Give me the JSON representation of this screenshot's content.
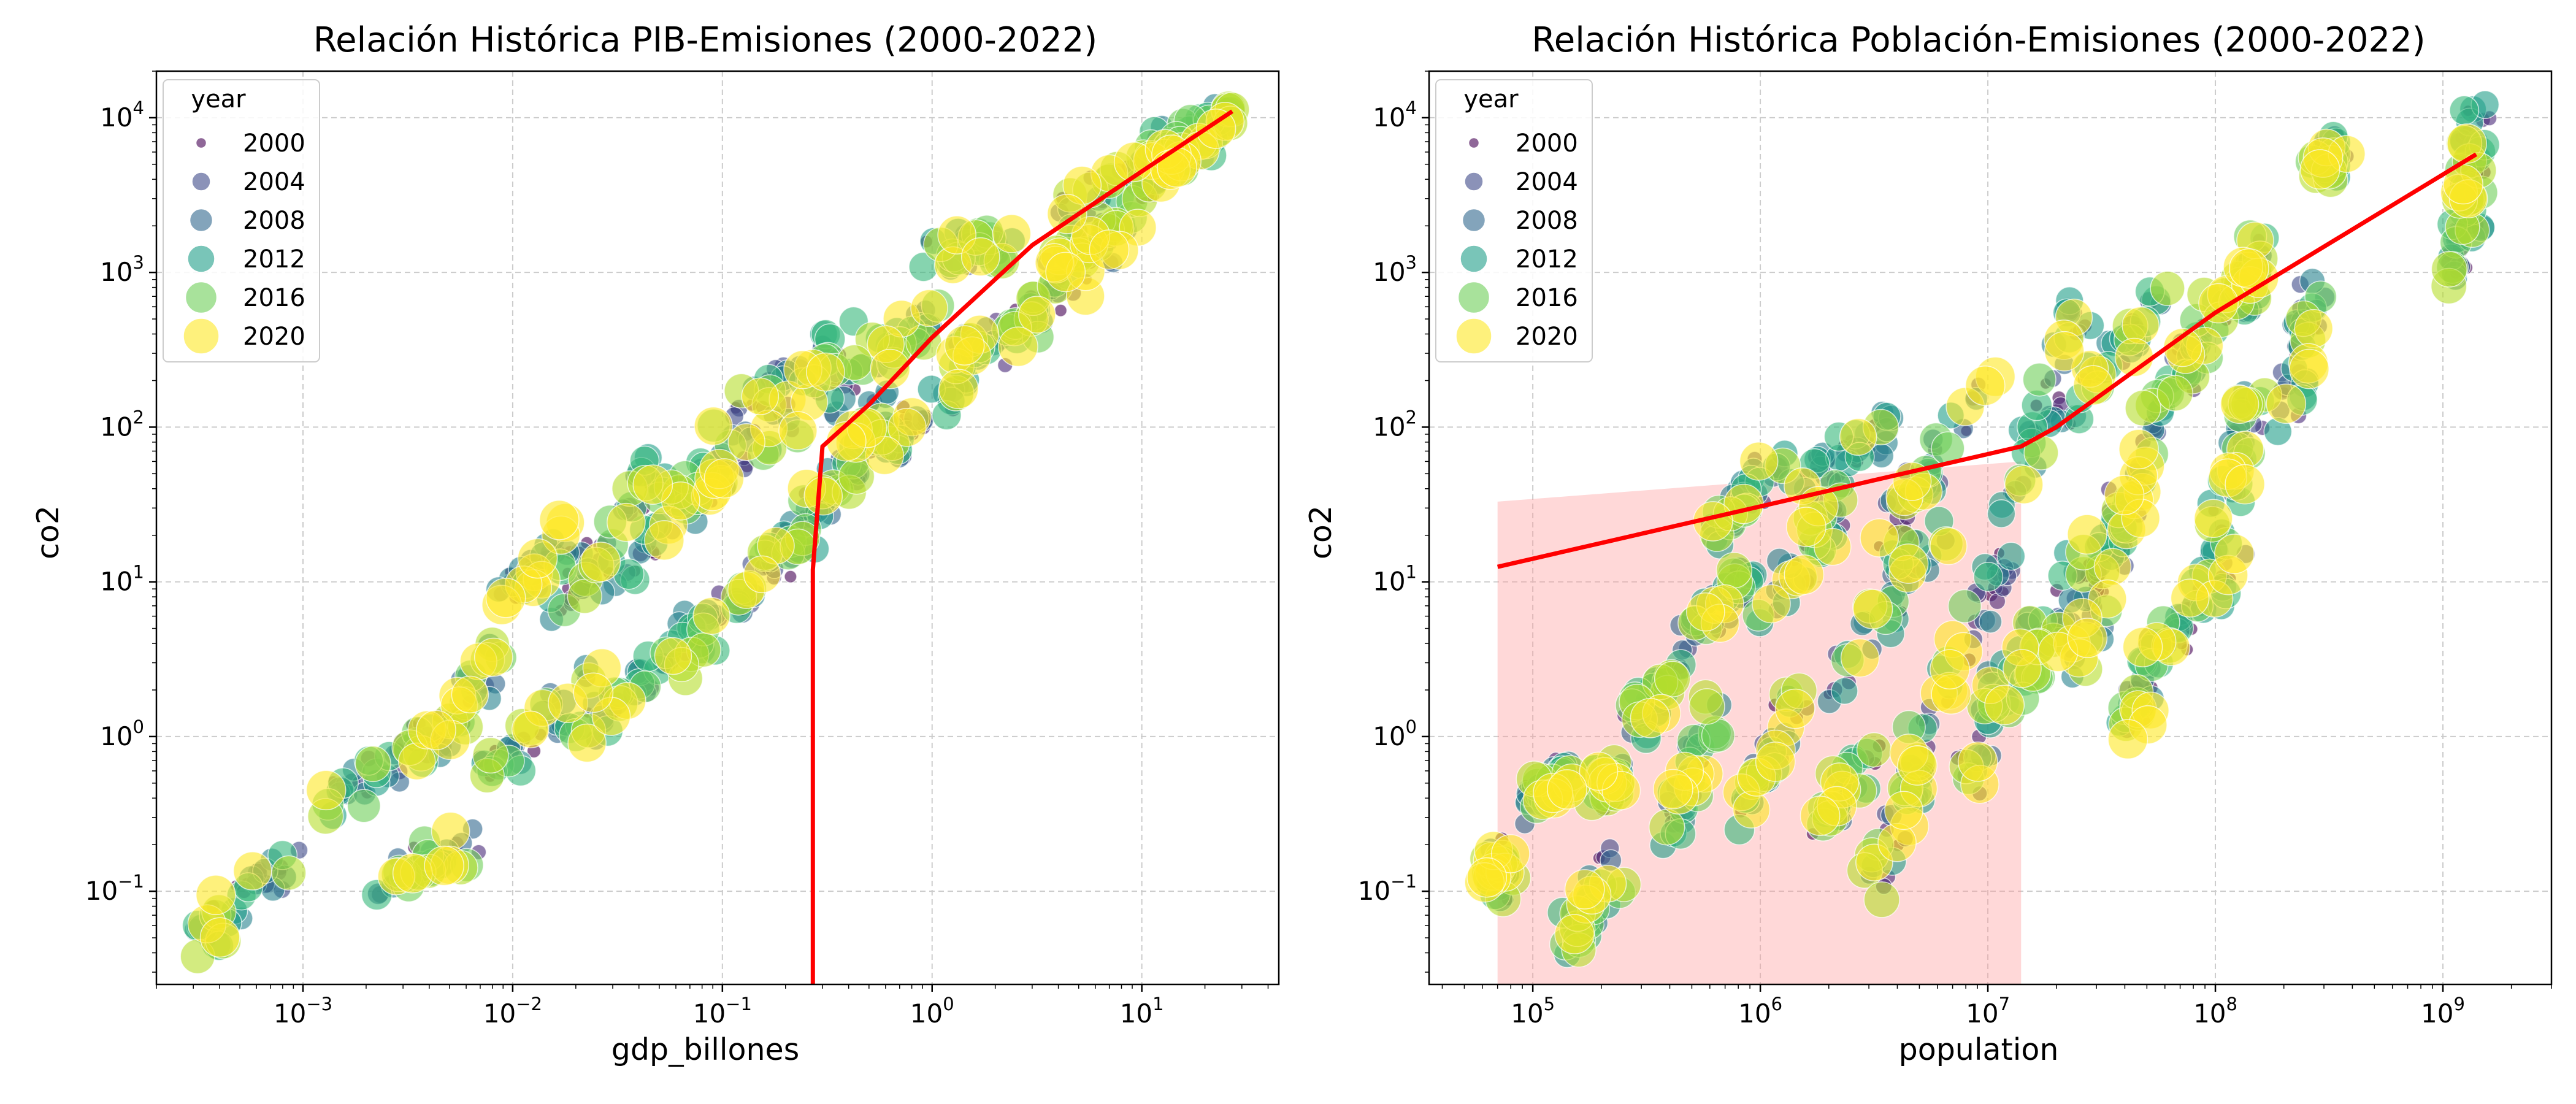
{
  "figure": {
    "background": "#ffffff"
  },
  "palette": {
    "year_colors": [
      "#440154",
      "#482878",
      "#3e4a89",
      "#31688e",
      "#26828e",
      "#1f9e89",
      "#35b779",
      "#6ece58",
      "#b5de2b",
      "#fde725"
    ],
    "trend_color": "#ff0000",
    "ci_color": "#ff9999"
  },
  "chart_data": [
    {
      "type": "scatter",
      "title": "Relación Histórica PIB-Emisiones (2000-2022)",
      "xlabel": "gdp_billones",
      "ylabel": "co2",
      "xscale": "log",
      "yscale": "log",
      "xlim": [
        0.0002,
        45
      ],
      "ylim": [
        0.025,
        20000
      ],
      "xticks": [
        {
          "v": 0.001,
          "m": "10",
          "e": "−3"
        },
        {
          "v": 0.01,
          "m": "10",
          "e": "−2"
        },
        {
          "v": 0.1,
          "m": "10",
          "e": "−1"
        },
        {
          "v": 1,
          "m": "10",
          "e": "0"
        },
        {
          "v": 10,
          "m": "10",
          "e": "1"
        }
      ],
      "yticks": [
        {
          "v": 0.1,
          "m": "10",
          "e": "−1"
        },
        {
          "v": 1,
          "m": "10",
          "e": "0"
        },
        {
          "v": 10,
          "m": "10",
          "e": "1"
        },
        {
          "v": 100,
          "m": "10",
          "e": "2"
        },
        {
          "v": 1000,
          "m": "10",
          "e": "3"
        },
        {
          "v": 10000,
          "m": "10",
          "e": "4"
        }
      ],
      "grid": true,
      "legend": {
        "title": "year",
        "placement": "upper left",
        "entries": [
          "2000",
          "2004",
          "2008",
          "2012",
          "2016",
          "2020"
        ]
      },
      "trend_line": {
        "x": [
          0.27,
          0.27,
          0.3,
          0.5,
          1,
          3,
          10,
          27
        ],
        "y": [
          0.025,
          12,
          75,
          140,
          380,
          1500,
          4500,
          11000
        ]
      },
      "clusters": [
        {
          "x0": 0.0003,
          "y0": 0.048,
          "x1": 0.0009,
          "y1": 0.16
        },
        {
          "x0": 0.0013,
          "y0": 0.35,
          "x1": 0.004,
          "y1": 1.0
        },
        {
          "x0": 0.0025,
          "y0": 0.12,
          "x1": 0.006,
          "y1": 0.2
        },
        {
          "x0": 0.003,
          "y0": 0.6,
          "x1": 0.009,
          "y1": 3.5
        },
        {
          "x0": 0.007,
          "y0": 0.5,
          "x1": 0.025,
          "y1": 2.5
        },
        {
          "x0": 0.009,
          "y0": 8,
          "x1": 0.02,
          "y1": 20
        },
        {
          "x0": 0.015,
          "y0": 5,
          "x1": 0.05,
          "y1": 60
        },
        {
          "x0": 0.02,
          "y0": 1,
          "x1": 0.08,
          "y1": 6
        },
        {
          "x0": 0.03,
          "y0": 10,
          "x1": 0.12,
          "y1": 70
        },
        {
          "x0": 0.05,
          "y0": 30,
          "x1": 0.3,
          "y1": 150
        },
        {
          "x0": 0.06,
          "y0": 3,
          "x1": 0.2,
          "y1": 15
        },
        {
          "x0": 0.1,
          "y0": 100,
          "x1": 0.4,
          "y1": 400
        },
        {
          "x0": 0.15,
          "y0": 10,
          "x1": 0.4,
          "y1": 60
        },
        {
          "x0": 0.25,
          "y0": 20,
          "x1": 0.6,
          "y1": 150
        },
        {
          "x0": 0.3,
          "y0": 150,
          "x1": 1.2,
          "y1": 600
        },
        {
          "x0": 0.5,
          "y0": 60,
          "x1": 1.5,
          "y1": 200
        },
        {
          "x0": 0.8,
          "y0": 1300,
          "x1": 2.5,
          "y1": 1500
        },
        {
          "x0": 1.2,
          "y0": 250,
          "x1": 3.5,
          "y1": 700
        },
        {
          "x0": 2.0,
          "y0": 300,
          "x1": 8,
          "y1": 1800
        },
        {
          "x0": 3.5,
          "y0": 1000,
          "x1": 12,
          "y1": 3500
        },
        {
          "x0": 4,
          "y0": 2400,
          "x1": 20,
          "y1": 9000
        },
        {
          "x0": 12,
          "y0": 5000,
          "x1": 15,
          "y1": 6000
        },
        {
          "x0": 16,
          "y0": 6000,
          "x1": 27,
          "y1": 11000
        }
      ]
    },
    {
      "type": "scatter",
      "title": "Relación Histórica Población-Emisiones (2000-2022)",
      "xlabel": "population",
      "ylabel": "co2",
      "xscale": "log",
      "yscale": "log",
      "xlim": [
        35000,
        3000000000
      ],
      "ylim": [
        0.025,
        20000
      ],
      "xticks": [
        {
          "v": 100000,
          "m": "10",
          "e": "5"
        },
        {
          "v": 1000000,
          "m": "10",
          "e": "6"
        },
        {
          "v": 10000000,
          "m": "10",
          "e": "7"
        },
        {
          "v": 100000000,
          "m": "10",
          "e": "8"
        },
        {
          "v": 1000000000,
          "m": "10",
          "e": "9"
        }
      ],
      "yticks": [
        {
          "v": 0.1,
          "m": "10",
          "e": "−1"
        },
        {
          "v": 1,
          "m": "10",
          "e": "0"
        },
        {
          "v": 10,
          "m": "10",
          "e": "1"
        },
        {
          "v": 100,
          "m": "10",
          "e": "2"
        },
        {
          "v": 1000,
          "m": "10",
          "e": "3"
        },
        {
          "v": 10000,
          "m": "10",
          "e": "4"
        }
      ],
      "grid": true,
      "legend": {
        "title": "year",
        "placement": "upper left",
        "entries": [
          "2000",
          "2004",
          "2008",
          "2012",
          "2016",
          "2020"
        ]
      },
      "trend_line": {
        "x": [
          70000,
          14000000,
          20000000,
          100000000,
          1400000000
        ],
        "y": [
          12.5,
          75,
          100,
          550,
          5800
        ]
      },
      "ci_band": {
        "x": [
          70000,
          14000000,
          14000000,
          70000
        ],
        "y": [
          33,
          60,
          0.025,
          0.025
        ]
      },
      "clusters": [
        {
          "x0": 70000,
          "y0": 0.11,
          "x1": 75000,
          "y1": 0.17
        },
        {
          "x0": 100000,
          "y0": 0.35,
          "x1": 140000,
          "y1": 0.6
        },
        {
          "x0": 140000,
          "y0": 0.05,
          "x1": 230000,
          "y1": 0.15
        },
        {
          "x0": 200000,
          "y0": 0.45,
          "x1": 220000,
          "y1": 0.55
        },
        {
          "x0": 280000,
          "y0": 1.2,
          "x1": 420000,
          "y1": 3.5
        },
        {
          "x0": 400000,
          "y0": 0.2,
          "x1": 600000,
          "y1": 1.5
        },
        {
          "x0": 500000,
          "y0": 4,
          "x1": 900000,
          "y1": 12
        },
        {
          "x0": 600000,
          "y0": 20,
          "x1": 1200000,
          "y1": 60
        },
        {
          "x0": 800000,
          "y0": 0.3,
          "x1": 1500000,
          "y1": 2
        },
        {
          "x0": 1000000,
          "y0": 5,
          "x1": 2500000,
          "y1": 50
        },
        {
          "x0": 1500000,
          "y0": 40,
          "x1": 3500000,
          "y1": 100
        },
        {
          "x0": 1800000,
          "y0": 0.25,
          "x1": 3000000,
          "y1": 0.8
        },
        {
          "x0": 2000000,
          "y0": 2,
          "x1": 6000000,
          "y1": 20
        },
        {
          "x0": 3000000,
          "y0": 0.1,
          "x1": 6000000,
          "y1": 1
        },
        {
          "x0": 3500000,
          "y0": 20,
          "x1": 10000000,
          "y1": 200
        },
        {
          "x0": 5000000,
          "y0": 1,
          "x1": 12000000,
          "y1": 15
        },
        {
          "x0": 8000000,
          "y0": 0.5,
          "x1": 14000000,
          "y1": 5
        },
        {
          "x0": 12000000,
          "y0": 30,
          "x1": 25000000,
          "y1": 600
        },
        {
          "x0": 15000000,
          "y0": 2,
          "x1": 30000000,
          "y1": 20
        },
        {
          "x0": 20000000,
          "y0": 100,
          "x1": 60000000,
          "y1": 700
        },
        {
          "x0": 25000000,
          "y0": 3,
          "x1": 40000000,
          "y1": 40
        },
        {
          "x0": 35000000,
          "y0": 10,
          "x1": 60000000,
          "y1": 200
        },
        {
          "x0": 40000000,
          "y0": 1,
          "x1": 60000000,
          "y1": 5
        },
        {
          "x0": 60000000,
          "y0": 4,
          "x1": 120000000,
          "y1": 15
        },
        {
          "x0": 70000000,
          "y0": 200,
          "x1": 110000000,
          "y1": 700
        },
        {
          "x0": 100000000,
          "y0": 20,
          "x1": 150000000,
          "y1": 150
        },
        {
          "x0": 130000000,
          "y0": 600,
          "x1": 150000000,
          "y1": 1700
        },
        {
          "x0": 200000000,
          "y0": 100,
          "x1": 270000000,
          "y1": 700
        },
        {
          "x0": 300000000,
          "y0": 4800,
          "x1": 340000000,
          "y1": 6000
        },
        {
          "x0": 1100000000,
          "y0": 1000,
          "x1": 1400000000,
          "y1": 3000
        },
        {
          "x0": 1300000000,
          "y0": 3500,
          "x1": 1420000000,
          "y1": 11000
        }
      ]
    }
  ]
}
